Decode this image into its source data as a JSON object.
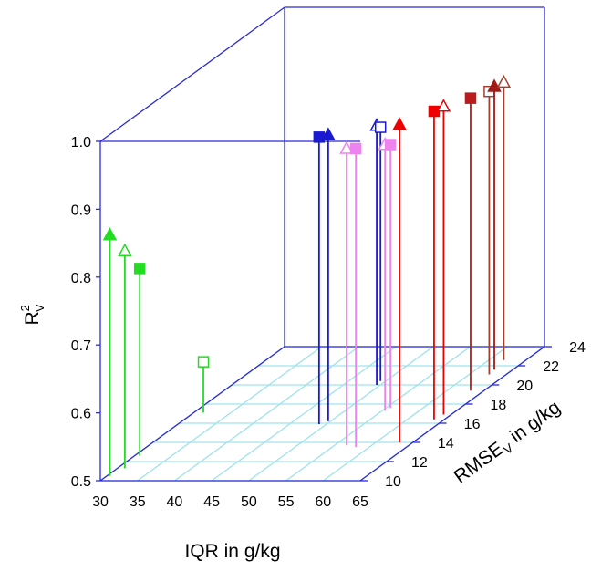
{
  "chart_data": {
    "type": "stem3d",
    "xlabel": "IQR in g/kg",
    "ylabel": {
      "base": "RMSE",
      "sub": "V",
      "rest": " in g/kg"
    },
    "zlabel": {
      "base": "R",
      "sup": "2",
      "sub": "V"
    },
    "xlim": [
      30,
      65
    ],
    "xticks": [
      30,
      35,
      40,
      45,
      50,
      55,
      60,
      65
    ],
    "ylim": [
      10,
      24
    ],
    "yticks": [
      10,
      12,
      14,
      16,
      18,
      20,
      22,
      24
    ],
    "zlim": [
      0.5,
      1
    ],
    "zticks": [
      0.5,
      0.6,
      0.7,
      0.8,
      0.9,
      {
        "value": 1,
        "label": "1.0"
      }
    ],
    "box_color": "#2a2ad8",
    "floor_grid_color": "#9fe3ec",
    "series": [
      {
        "color": "#22dd22",
        "marker": "triangle",
        "filled": true,
        "x": [
          30.4
        ],
        "y": [
          10.5
        ],
        "z": [
          0.855
        ]
      },
      {
        "color": "#22dd22",
        "marker": "triangle",
        "filled": false,
        "x": [
          31
        ],
        "y": [
          11.3
        ],
        "z": [
          0.82
        ]
      },
      {
        "color": "#22dd22",
        "marker": "square",
        "filled": true,
        "x": [
          30.7
        ],
        "y": [
          12.6
        ],
        "z": [
          0.776
        ]
      },
      {
        "color": "#22dd22",
        "marker": "square",
        "filled": false,
        "x": [
          31.3
        ],
        "y": [
          17.1
        ],
        "z": [
          0.575
        ]
      },
      {
        "color": "#1a1ad0",
        "marker": "square",
        "filled": true,
        "x": [
          49
        ],
        "y": [
          15.9
        ],
        "z": [
          0.923
        ]
      },
      {
        "color": "#1a1ad0",
        "marker": "triangle",
        "filled": true,
        "x": [
          49.7
        ],
        "y": [
          16.2
        ],
        "z": [
          0.922
        ]
      },
      {
        "color": "#1a1ad0",
        "marker": "triangle",
        "filled": false,
        "x": [
          49.5
        ],
        "y": [
          20
        ],
        "z": [
          0.882
        ]
      },
      {
        "color": "#1a1ad0",
        "marker": "square",
        "filled": false,
        "x": [
          49.3
        ],
        "y": [
          20.4
        ],
        "z": [
          0.874
        ]
      },
      {
        "color": "#ee82ee",
        "marker": "triangle",
        "filled": false,
        "x": [
          56.6,
          55.4
        ],
        "y": [
          13.7,
          17.3
        ],
        "z": [
          0.937,
          0.892
        ]
      },
      {
        "color": "#ee82ee",
        "marker": "square",
        "filled": true,
        "x": [
          58.2,
          55.6
        ],
        "y": [
          13.5,
          17.6
        ],
        "z": [
          0.94,
          0.888
        ]
      },
      {
        "color": "#ee0000",
        "marker": "triangle",
        "filled": true,
        "x": [
          63.2
        ],
        "y": [
          14
        ],
        "z": [
          0.968
        ]
      },
      {
        "color": "#ee0000",
        "marker": "square",
        "filled": true,
        "x": [
          63.6
        ],
        "y": [
          16.4
        ],
        "z": [
          0.954
        ]
      },
      {
        "color": "#ee0000",
        "marker": "triangle",
        "filled": false,
        "x": [
          64
        ],
        "y": [
          16.9
        ],
        "z": [
          0.954
        ]
      },
      {
        "color": "#b81c1c",
        "marker": "square",
        "filled": true,
        "x": [
          63.2
        ],
        "y": [
          19.4
        ],
        "z": [
          0.931
        ]
      },
      {
        "color": "#a0402d",
        "marker": "square",
        "filled": false,
        "x": [
          62.7
        ],
        "y": [
          21.1
        ],
        "z": [
          0.917
        ]
      },
      {
        "color": "#a01a1a",
        "marker": "triangle",
        "filled": true,
        "x": [
          62.5
        ],
        "y": [
          21.6
        ],
        "z": [
          0.917
        ]
      },
      {
        "color": "#a0402d",
        "marker": "triangle",
        "filled": false,
        "x": [
          62
        ],
        "y": [
          22.6
        ],
        "z": [
          0.909
        ]
      }
    ]
  }
}
